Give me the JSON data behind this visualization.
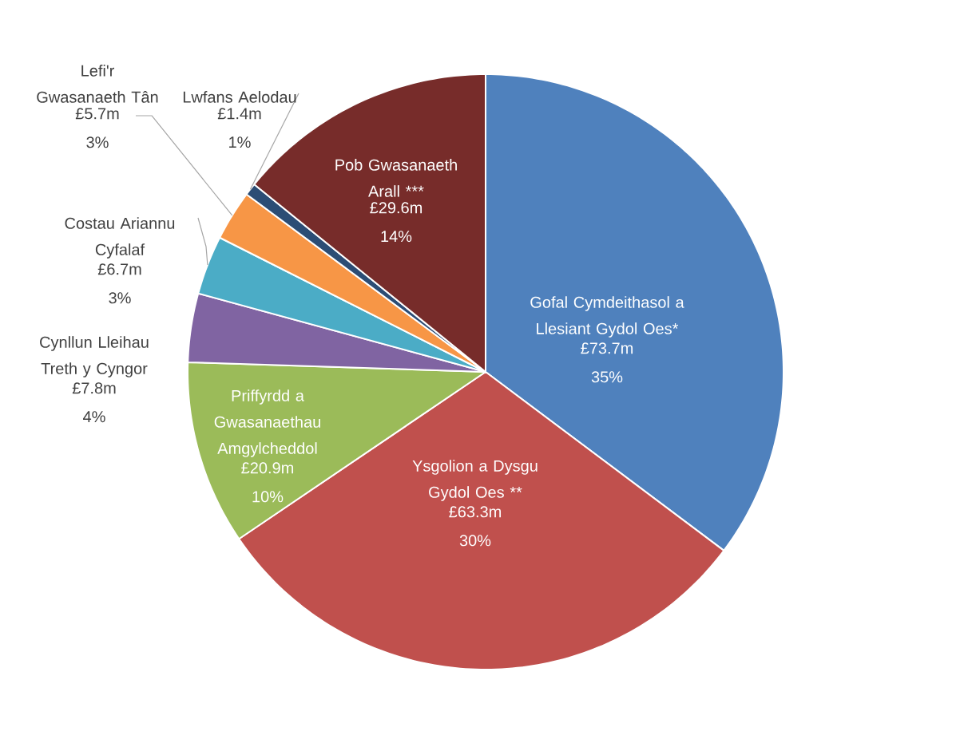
{
  "chart_data": {
    "type": "pie",
    "categories": [
      "Gofal Cymdeithasol a Llesiant Gydol Oes*",
      "Ysgolion a Dysgu Gydol Oes **",
      "Priffyrdd a Gwasanaethau Amgylcheddol",
      "Cynllun Lleihau Treth y Cyngor",
      "Costau Ariannu Cyfalaf",
      "Lefi'r Gwasanaeth Tân",
      "Lwfans Aelodau",
      "Pob Gwasanaeth Arall ***"
    ],
    "values": [
      73.7,
      63.3,
      20.9,
      7.8,
      6.7,
      5.7,
      1.4,
      29.6
    ],
    "colors": [
      "#4f81bd",
      "#c0504d",
      "#9bbb59",
      "#8064a2",
      "#4bacc6",
      "#f79646",
      "#2c4d75",
      "#772c2a"
    ],
    "value_labels": [
      "£73.7m",
      "£63.3m",
      "£20.9m",
      "£7.8m",
      "£6.7m",
      "£5.7m",
      "£1.4m",
      "£29.6m"
    ],
    "annotations": [
      "35%",
      "30%",
      "10%",
      "4%",
      "3%",
      "3%",
      "1%",
      "14%"
    ]
  }
}
